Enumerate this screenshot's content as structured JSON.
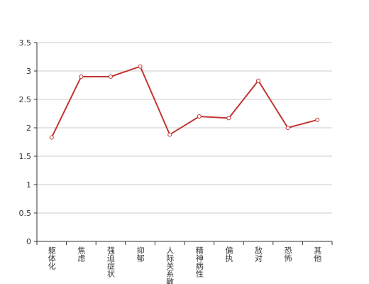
{
  "chart_data": {
    "type": "line",
    "categories": [
      "躯体化",
      "焦虑",
      "强迫症状",
      "抑郁",
      "人际关系敏感",
      "精神病性",
      "偏执",
      "敌对",
      "恐怖",
      "其他"
    ],
    "series": [
      {
        "color": "#c23531",
        "values": [
          1.83,
          2.9,
          2.9,
          3.08,
          1.88,
          2.2,
          2.17,
          2.83,
          2.0,
          2.14
        ]
      }
    ],
    "ylim": [
      0,
      3.5
    ],
    "yticks": [
      0,
      0.5,
      1,
      1.5,
      2,
      2.5,
      3,
      3.5
    ],
    "grid": true
  }
}
